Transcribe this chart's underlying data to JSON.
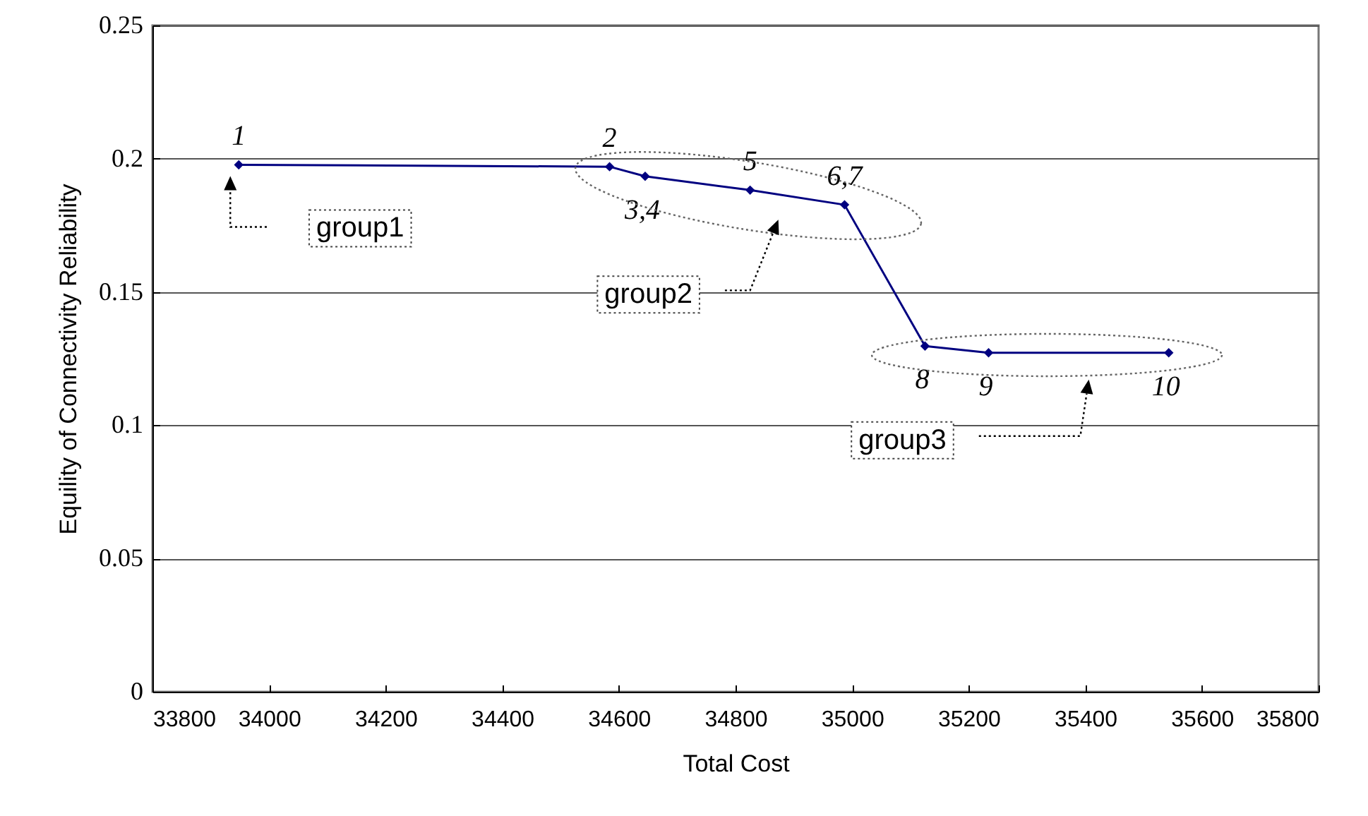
{
  "chart_data": {
    "type": "line",
    "xlabel": "Total Cost",
    "ylabel": "Equility of Connectivity Reliability",
    "x": [
      33948,
      34584,
      34645,
      34825,
      34987,
      35125,
      35234,
      35543
    ],
    "values": [
      0.1977,
      0.197,
      0.1934,
      0.1882,
      0.1827,
      0.1297,
      0.1272,
      0.1272
    ],
    "color": "#000080",
    "marker": "diamond",
    "line_style": "solid",
    "grid": "y",
    "xlim": [
      33800,
      35800
    ],
    "xticks": [
      33800,
      34000,
      34200,
      34400,
      34600,
      34800,
      35000,
      35200,
      35400,
      35600,
      35800
    ],
    "ylim": [
      0,
      0.25
    ],
    "yticks": [
      0,
      0.05,
      0.1,
      0.15,
      0.2,
      0.25
    ],
    "annotations": [
      {
        "text": "1",
        "x": 33948,
        "y": 0.1977
      },
      {
        "text": "2",
        "x": 34584,
        "y": 0.197
      },
      {
        "text": "3,4",
        "x": 34645,
        "y": 0.1934
      },
      {
        "text": "5",
        "x": 34825,
        "y": 0.1882
      },
      {
        "text": "6,7",
        "x": 34987,
        "y": 0.1827
      },
      {
        "text": "8",
        "x": 35125,
        "y": 0.1297
      },
      {
        "text": "9",
        "x": 35234,
        "y": 0.1272
      },
      {
        "text": "10",
        "x": 35543,
        "y": 0.1272
      },
      "group1",
      "group2",
      "group3"
    ]
  }
}
